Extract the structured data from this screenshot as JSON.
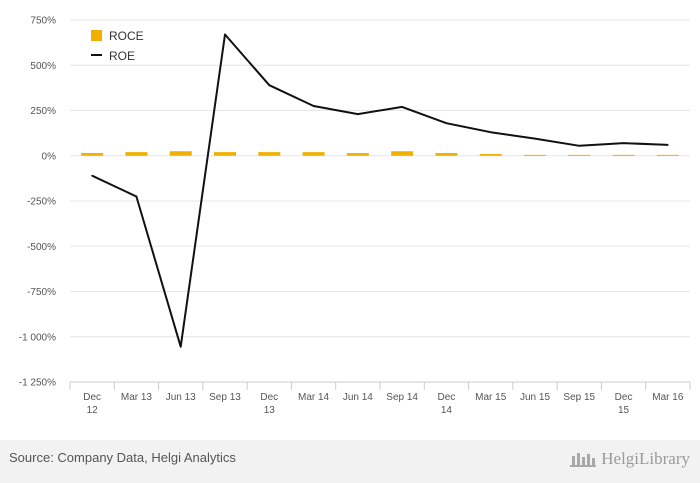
{
  "chart_data": {
    "type": "bar+line",
    "categories": [
      [
        "Dec",
        "12"
      ],
      [
        "Mar 13"
      ],
      [
        "Jun 13"
      ],
      [
        "Sep 13"
      ],
      [
        "Dec",
        "13"
      ],
      [
        "Mar 14"
      ],
      [
        "Jun 14"
      ],
      [
        "Sep 14"
      ],
      [
        "Dec",
        "14"
      ],
      [
        "Mar 15"
      ],
      [
        "Jun 15"
      ],
      [
        "Sep 15"
      ],
      [
        "Dec",
        "15"
      ],
      [
        "Mar 16"
      ]
    ],
    "series": [
      {
        "name": "ROCE",
        "type": "bar",
        "color": "#f0b000",
        "values": [
          15,
          20,
          25,
          20,
          20,
          20,
          15,
          25,
          15,
          10,
          5,
          5,
          5,
          5
        ]
      },
      {
        "name": "ROE",
        "type": "line",
        "color": "#111111",
        "values": [
          -110,
          -225,
          -1055,
          670,
          390,
          275,
          230,
          270,
          180,
          130,
          95,
          55,
          70,
          60
        ]
      }
    ],
    "y_ticks": [
      {
        "value": 750,
        "label": "750%"
      },
      {
        "value": 500,
        "label": "500%"
      },
      {
        "value": 250,
        "label": "250%"
      },
      {
        "value": 0,
        "label": "0%"
      },
      {
        "value": -250,
        "label": "-250%"
      },
      {
        "value": -500,
        "label": "-500%"
      },
      {
        "value": -750,
        "label": "-750%"
      },
      {
        "value": -1000,
        "label": "-1 000%"
      },
      {
        "value": -1250,
        "label": "-1 250%"
      }
    ],
    "ylim": [
      -1250,
      750
    ],
    "grid": true,
    "legend_position": "top-left"
  },
  "footer": {
    "source": "Source: Company Data, Helgi Analytics",
    "brand": "HelgiLibrary",
    "brand_icon": "library-building-icon"
  }
}
